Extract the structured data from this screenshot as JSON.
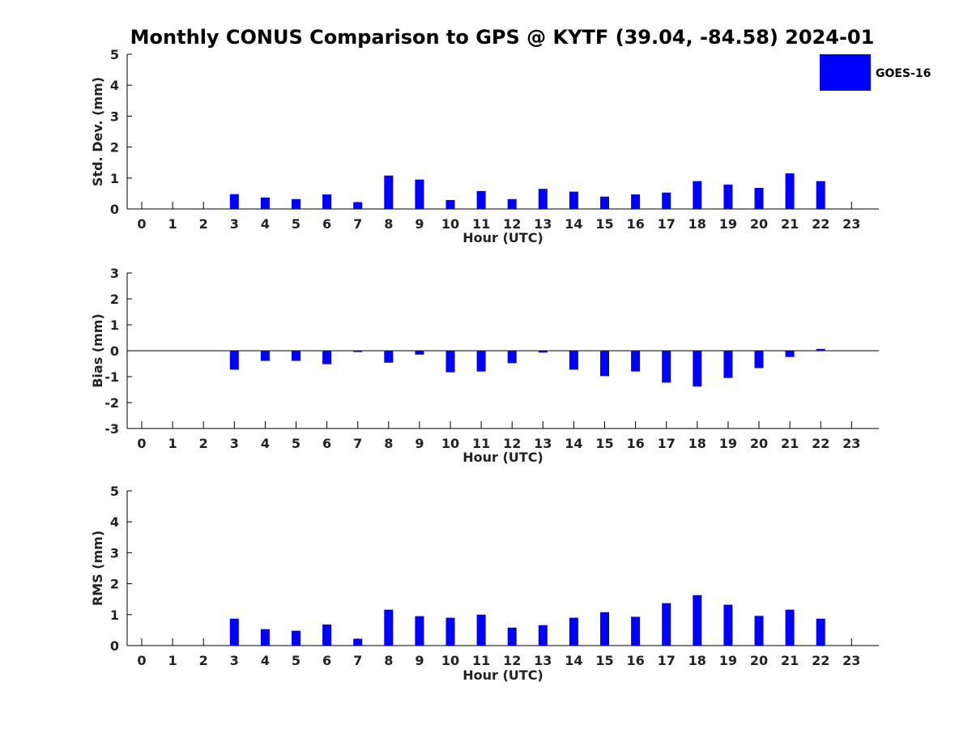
{
  "figure": {
    "title": "Monthly CONUS Comparison to GPS @ KYTF (39.04, -84.58) 2024-01"
  },
  "legend": {
    "label": "GOES-16",
    "color": "#0000ff",
    "placement": "top-right"
  },
  "chart_data": [
    {
      "type": "bar",
      "xlabel": "Hour (UTC)",
      "ylabel": "Std. Dev. (mm)",
      "ylim": [
        0,
        5
      ],
      "yticks": [
        0,
        1,
        2,
        3,
        4,
        5
      ],
      "categories": [
        "0",
        "1",
        "2",
        "3",
        "4",
        "5",
        "6",
        "7",
        "8",
        "9",
        "10",
        "11",
        "12",
        "13",
        "14",
        "15",
        "16",
        "17",
        "18",
        "19",
        "20",
        "21",
        "22",
        "23"
      ],
      "series": [
        {
          "name": "GOES-16",
          "color": "#0000ff",
          "values": [
            null,
            null,
            null,
            0.48,
            0.37,
            0.32,
            0.47,
            0.22,
            1.08,
            0.95,
            0.29,
            0.58,
            0.32,
            0.65,
            0.56,
            0.4,
            0.47,
            0.53,
            0.9,
            0.79,
            0.68,
            1.15,
            0.9,
            null
          ]
        }
      ]
    },
    {
      "type": "bar",
      "xlabel": "Hour (UTC)",
      "ylabel": "Bias (mm)",
      "ylim": [
        -3,
        3
      ],
      "yticks": [
        -3,
        -2,
        -1,
        0,
        1,
        2,
        3
      ],
      "categories": [
        "0",
        "1",
        "2",
        "3",
        "4",
        "5",
        "6",
        "7",
        "8",
        "9",
        "10",
        "11",
        "12",
        "13",
        "14",
        "15",
        "16",
        "17",
        "18",
        "19",
        "20",
        "21",
        "22",
        "23"
      ],
      "series": [
        {
          "name": "GOES-16",
          "color": "#0000ff",
          "values": [
            null,
            null,
            null,
            -0.73,
            -0.39,
            -0.39,
            -0.52,
            -0.05,
            -0.46,
            -0.15,
            -0.83,
            -0.8,
            -0.48,
            -0.07,
            -0.73,
            -0.98,
            -0.8,
            -1.23,
            -1.38,
            -1.05,
            -0.67,
            -0.24,
            0.07,
            null
          ]
        }
      ]
    },
    {
      "type": "bar",
      "xlabel": "Hour (UTC)",
      "ylabel": "RMS (mm)",
      "ylim": [
        0,
        5
      ],
      "yticks": [
        0,
        1,
        2,
        3,
        4,
        5
      ],
      "categories": [
        "0",
        "1",
        "2",
        "3",
        "4",
        "5",
        "6",
        "7",
        "8",
        "9",
        "10",
        "11",
        "12",
        "13",
        "14",
        "15",
        "16",
        "17",
        "18",
        "19",
        "20",
        "21",
        "22",
        "23"
      ],
      "series": [
        {
          "name": "GOES-16",
          "color": "#0000ff",
          "values": [
            null,
            null,
            null,
            0.87,
            0.53,
            0.48,
            0.68,
            0.22,
            1.16,
            0.95,
            0.9,
            1.0,
            0.58,
            0.66,
            0.9,
            1.08,
            0.93,
            1.37,
            1.63,
            1.32,
            0.96,
            1.16,
            0.87,
            null
          ]
        }
      ]
    }
  ]
}
